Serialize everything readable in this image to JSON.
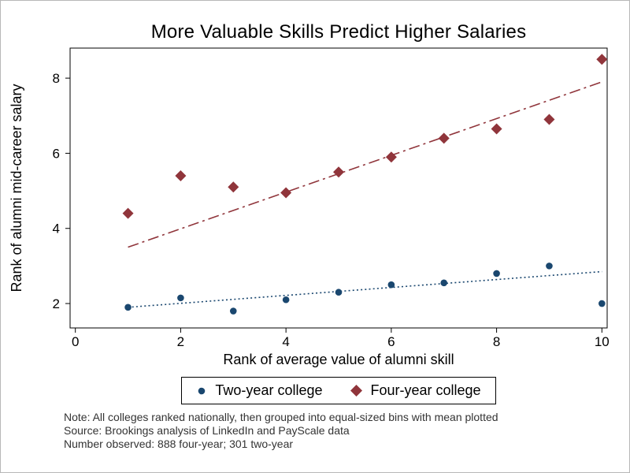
{
  "figure": {
    "title": "More Valuable Skills Predict Higher Salaries",
    "notes": [
      "Note: All colleges ranked nationally, then grouped into equal-sized bins with mean plotted",
      "Source: Brookings analysis of LinkedIn and PayScale data",
      "Number observed: 888 four-year; 301 two-year"
    ]
  },
  "chart_data": {
    "type": "scatter",
    "title": "More Valuable Skills Predict Higher Salaries",
    "xlabel": "Rank of average value of alumni skill",
    "ylabel": "Rank of alumni mid-career salary",
    "xlim": [
      -0.1,
      10.1
    ],
    "ylim": [
      1.35,
      8.8
    ],
    "xticks": [
      0,
      2,
      4,
      6,
      8,
      10
    ],
    "yticks": [
      2,
      4,
      6,
      8
    ],
    "grid": false,
    "legend_position": "bottom",
    "frame_color": "#000000",
    "series": [
      {
        "name": "Two-year college",
        "marker": "circle",
        "color": "#1a476f",
        "line_style": "dotted",
        "x": [
          1,
          2,
          3,
          4,
          5,
          6,
          7,
          8,
          9,
          10
        ],
        "y": [
          1.9,
          2.15,
          1.8,
          2.1,
          2.3,
          2.5,
          2.55,
          2.8,
          3.0,
          2.0
        ],
        "fit_line": {
          "x1": 1,
          "y1": 1.9,
          "x2": 10,
          "y2": 2.85
        }
      },
      {
        "name": "Four-year college",
        "marker": "diamond",
        "color": "#90353b",
        "line_style": "dashdot",
        "x": [
          1,
          2,
          3,
          4,
          5,
          6,
          7,
          8,
          9,
          10
        ],
        "y": [
          4.4,
          5.4,
          5.1,
          4.95,
          5.5,
          5.9,
          6.4,
          6.65,
          6.9,
          8.5
        ],
        "fit_line": {
          "x1": 1,
          "y1": 3.5,
          "x2": 10,
          "y2": 7.9
        }
      }
    ]
  }
}
